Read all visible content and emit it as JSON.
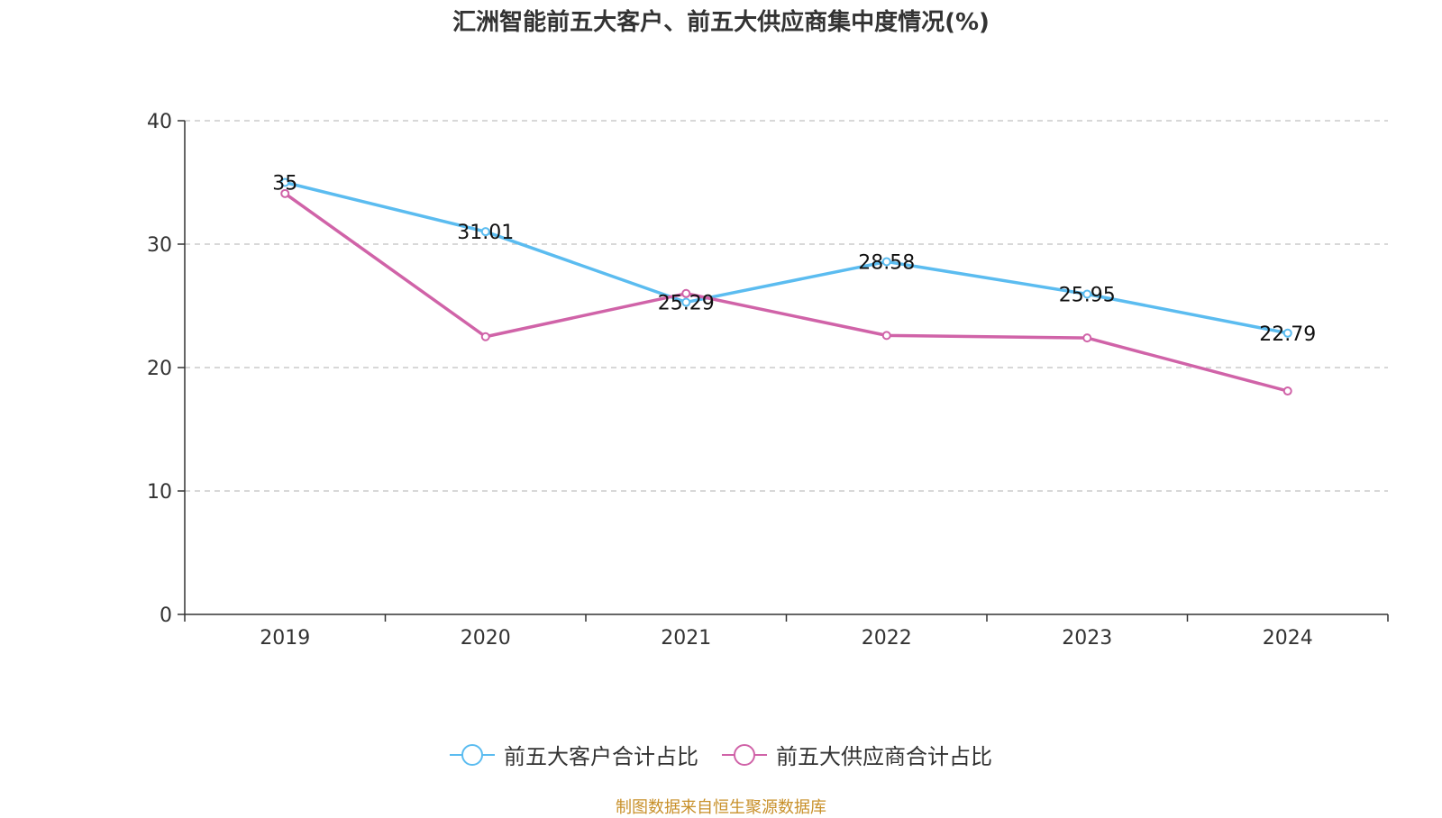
{
  "chart_data": {
    "type": "line",
    "title": "汇洲智能前五大客户、前五大供应商集中度情况(%)",
    "categories": [
      "2019",
      "2020",
      "2021",
      "2022",
      "2023",
      "2024"
    ],
    "ylim": [
      0,
      40
    ],
    "yticks": [
      0,
      10,
      20,
      30,
      40
    ],
    "grid": true,
    "legend_position": "bottom",
    "series": [
      {
        "name": "前五大客户合计占比",
        "color": "#5bbcf0",
        "values": [
          35,
          31.01,
          25.29,
          28.58,
          25.95,
          22.79
        ],
        "labels": [
          "35",
          "31.01",
          "25.29",
          "28.58",
          "25.95",
          "22.79"
        ]
      },
      {
        "name": "前五大供应商合计占比",
        "color": "#d063a8",
        "values": [
          34.1,
          22.5,
          26.0,
          22.6,
          22.4,
          18.1
        ],
        "labels": []
      }
    ]
  },
  "source_text": "制图数据来自恒生聚源数据库"
}
